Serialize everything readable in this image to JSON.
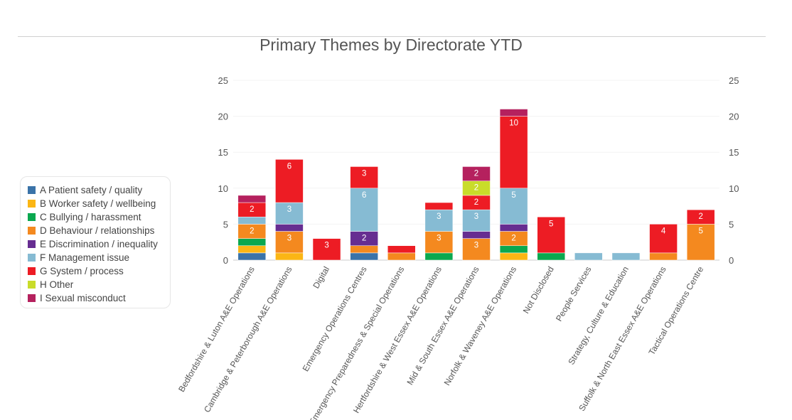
{
  "chart_data": {
    "type": "bar",
    "stacked": true,
    "title": "Primary Themes by Directorate YTD",
    "ylim": [
      0,
      25
    ],
    "yticks": [
      0,
      5,
      10,
      15,
      20,
      25
    ],
    "secondary_y_axis": true,
    "legend_position": "left",
    "categories": [
      "Bedfordshire & Luton A&E Operations",
      "Cambridge & Peterborough A&E Operations",
      "Digital",
      "Emergency Operations Centres",
      "Emergency Preparedness & Special Operations",
      "Hertfordshire & West Essex A&E Operations",
      "Mid & South Essex A&E Operations",
      "Norfolk & Waveney A&E Operations",
      "Not Disclosed",
      "People Services",
      "Strategy, Culture & Education",
      "Suffolk & North East Essex A&E Operations",
      "Tactical Operations Centre"
    ],
    "series": [
      {
        "name": "A Patient safety / quality",
        "color": "#3a73a8",
        "values": [
          1,
          0,
          0,
          1,
          0,
          0,
          0,
          0,
          0,
          0,
          0,
          0,
          0
        ]
      },
      {
        "name": "B Worker safety / wellbeing",
        "color": "#fbb614",
        "values": [
          1,
          1,
          0,
          0,
          0,
          0,
          0,
          1,
          0,
          0,
          0,
          0,
          0
        ]
      },
      {
        "name": "C Bullying / harassment",
        "color": "#0aa84f",
        "values": [
          1,
          0,
          0,
          0,
          0,
          1,
          0,
          1,
          1,
          0,
          0,
          0,
          0
        ]
      },
      {
        "name": "D Behaviour / relationships",
        "color": "#f4891f",
        "values": [
          2,
          3,
          0,
          1,
          1,
          3,
          3,
          2,
          0,
          0,
          0,
          1,
          5
        ]
      },
      {
        "name": "E Discrimination / inequality",
        "color": "#662d91",
        "values": [
          0,
          1,
          0,
          2,
          0,
          0,
          1,
          1,
          0,
          0,
          0,
          0,
          0
        ]
      },
      {
        "name": "F Management issue",
        "color": "#86bbd3",
        "values": [
          1,
          3,
          0,
          6,
          0,
          3,
          3,
          5,
          0,
          1,
          1,
          0,
          0
        ]
      },
      {
        "name": "G System / process",
        "color": "#ed1c24",
        "values": [
          2,
          6,
          3,
          3,
          1,
          1,
          2,
          10,
          5,
          0,
          0,
          4,
          2
        ]
      },
      {
        "name": "H Other",
        "color": "#c9dc2a",
        "values": [
          0,
          0,
          0,
          0,
          0,
          0,
          2,
          0,
          0,
          0,
          0,
          0,
          0
        ]
      },
      {
        "name": "I Sexual misconduct",
        "color": "#b5215e",
        "values": [
          1,
          0,
          0,
          0,
          0,
          0,
          2,
          1,
          0,
          0,
          0,
          0,
          0
        ]
      }
    ]
  }
}
